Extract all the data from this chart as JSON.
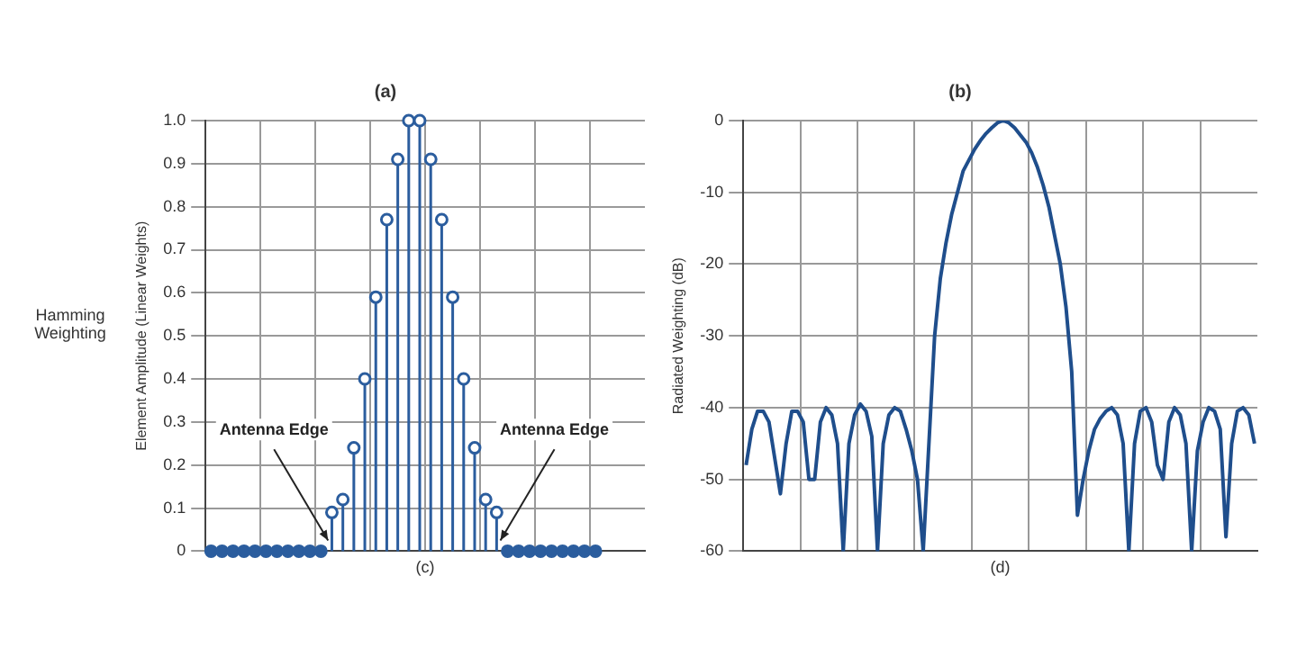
{
  "chart_data": [
    {
      "type": "lollipop",
      "title": "(a)",
      "xlabel": "(c)",
      "ylabel": "Element Amplitude (Linear Weights)",
      "categories": [
        null,
        null,
        null,
        null,
        null,
        null,
        null,
        null,
        null,
        null,
        null,
        null,
        null,
        null,
        null,
        null,
        null,
        null,
        null,
        null,
        null,
        null,
        null,
        null,
        null,
        null,
        null,
        null,
        null,
        null,
        null,
        null,
        null,
        null,
        null,
        null,
        null,
        null,
        null,
        null
      ],
      "series": [
        {
          "color": "#2b5d9e",
          "values": [
            0,
            0,
            0,
            0,
            0,
            0,
            0,
            0,
            0,
            0,
            0,
            0.09,
            0.12,
            0.24,
            0.4,
            0.59,
            0.77,
            0.91,
            1.0,
            1.0,
            0.91,
            0.77,
            0.59,
            0.4,
            0.24,
            0.12,
            0.09,
            0,
            0,
            0,
            0,
            0,
            0,
            0,
            0,
            0,
            null,
            null,
            null,
            null
          ]
        }
      ],
      "marker": "circle",
      "ylim": [
        0,
        1
      ],
      "yticks": [
        0,
        0.1,
        0.2,
        0.3,
        0.4,
        0.5,
        0.6,
        0.7,
        0.8,
        0.9,
        {
          "value": 1,
          "label": "1.0"
        }
      ],
      "grid": true,
      "tick_labels": "y",
      "legend": false,
      "annotations": [
        "Hamming Weighting",
        "Antenna Edge",
        "Antenna Edge"
      ]
    },
    {
      "type": "line",
      "title": "(b)",
      "xlabel": "(d)",
      "ylabel": "Radiated Weighting (dB)",
      "categories": [
        null,
        null,
        null,
        null,
        null,
        null,
        null,
        null,
        null,
        null,
        null,
        null,
        null,
        null,
        null,
        null,
        null,
        null,
        null,
        null,
        null,
        null,
        null,
        null,
        null,
        null,
        null,
        null,
        null,
        null,
        null,
        null,
        null,
        null,
        null,
        null,
        null,
        null,
        null,
        null,
        null,
        null,
        null,
        null,
        null,
        null,
        null,
        null,
        null,
        null,
        null,
        null,
        null,
        null,
        null,
        null,
        null,
        null,
        null,
        null,
        null,
        null,
        null,
        null,
        null,
        null,
        null,
        null,
        null,
        null,
        null,
        null,
        null,
        null,
        null,
        null,
        null,
        null,
        null,
        null,
        null,
        null,
        null,
        null,
        null,
        null,
        null,
        null,
        null,
        null
      ],
      "series": [
        {
          "color": "#1f4e8c",
          "values": [
            -48,
            -43,
            -40.5,
            -40.5,
            -42,
            -47,
            -52,
            -45,
            -40.5,
            -40.5,
            -42,
            -50,
            -50,
            -42,
            -40,
            -41,
            -45,
            -60,
            -45,
            -41,
            -39.5,
            -40.5,
            -44,
            -60,
            -45,
            -41,
            -40,
            -40.5,
            -43,
            -46,
            -50,
            -60,
            -45,
            -30,
            -22,
            -17,
            -13,
            -10,
            -7,
            -5.5,
            -4,
            -2.8,
            -1.8,
            -1,
            -0.3,
            0,
            -0.3,
            -1,
            -2,
            -3,
            -4.5,
            -6.5,
            -9,
            -12,
            -16,
            -20,
            -26,
            -35,
            -55,
            -50,
            -46,
            -43,
            -41.5,
            -40.5,
            -40,
            -41,
            -45,
            -60,
            -45,
            -40.5,
            -40,
            -42,
            -48,
            -50,
            -42,
            -40,
            -41,
            -45,
            -60,
            -46,
            -42,
            -40,
            -40.5,
            -43,
            -58,
            -45,
            -40.5,
            -40,
            -41,
            -45
          ]
        }
      ],
      "marker": "none",
      "ylim": [
        -60,
        0
      ],
      "yticks": [
        -60,
        -50,
        -40,
        -30,
        -20,
        -10,
        0
      ],
      "grid": true,
      "tick_labels": "y",
      "legend": false
    }
  ]
}
